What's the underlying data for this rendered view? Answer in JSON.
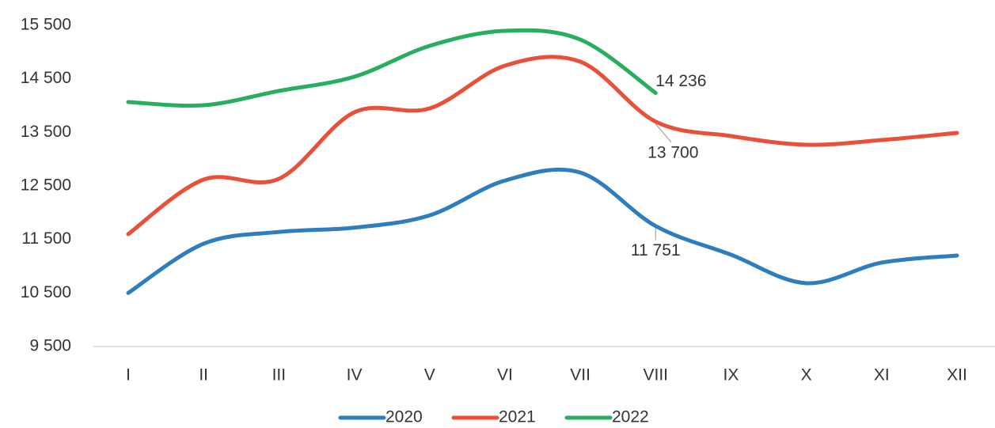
{
  "chart_data": {
    "type": "line",
    "categories": [
      "I",
      "II",
      "III",
      "IV",
      "V",
      "VI",
      "VII",
      "VIII",
      "IX",
      "X",
      "XI",
      "XII"
    ],
    "series": [
      {
        "name": "2020",
        "color": "#2e7dbf",
        "values": [
          10500,
          11420,
          11640,
          11720,
          11950,
          12600,
          12750,
          11751,
          11215,
          10683,
          11067,
          11200
        ],
        "value_labels": [
          null,
          null,
          null,
          null,
          null,
          null,
          null,
          "11 751",
          null,
          null,
          null,
          null
        ]
      },
      {
        "name": "2021",
        "color": "#e8503a",
        "values": [
          11600,
          12618,
          12633,
          13874,
          13948,
          14746,
          14820,
          13700,
          13431,
          13269,
          13357,
          13490
        ],
        "value_labels": [
          null,
          null,
          null,
          null,
          null,
          null,
          null,
          "13 700",
          null,
          null,
          null,
          null
        ]
      },
      {
        "name": "2022",
        "color": "#27ae5e",
        "values": [
          14067,
          14007,
          14274,
          14539,
          15116,
          15397,
          15234,
          14236,
          null,
          null,
          null,
          null
        ],
        "value_labels": [
          null,
          null,
          null,
          null,
          null,
          null,
          null,
          "14 236",
          null,
          null,
          null,
          null
        ]
      }
    ],
    "ylim": [
      9500,
      15500
    ],
    "yticks": [
      {
        "value": 9500,
        "label": "9 500"
      },
      {
        "value": 10500,
        "label": "10 500"
      },
      {
        "value": 11500,
        "label": "11 500"
      },
      {
        "value": 12500,
        "label": "12 500"
      },
      {
        "value": 13500,
        "label": "13 500"
      },
      {
        "value": 14500,
        "label": "14 500"
      },
      {
        "value": 15500,
        "label": "15 500"
      }
    ],
    "legend": "bottom"
  }
}
